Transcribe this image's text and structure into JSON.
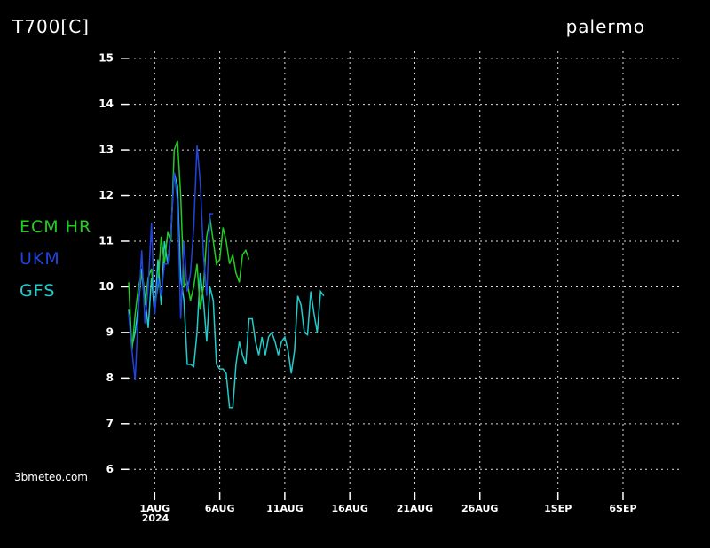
{
  "chart_data": {
    "type": "line",
    "title": "T700[C]",
    "location": "palermo",
    "source": "3bmeteo.com",
    "year_label": "2024",
    "xlim": [
      -1,
      41.3
    ],
    "ylim": [
      5.5,
      15.1
    ],
    "xticks": [
      {
        "value": 1,
        "label": "1AUG"
      },
      {
        "value": 6,
        "label": "6AUG"
      },
      {
        "value": 11,
        "label": "11AUG"
      },
      {
        "value": 16,
        "label": "16AUG"
      },
      {
        "value": 21,
        "label": "21AUG"
      },
      {
        "value": 26,
        "label": "26AUG"
      },
      {
        "value": 32,
        "label": "1SEP"
      },
      {
        "value": 37,
        "label": "6SEP"
      }
    ],
    "yticks": [
      6,
      7,
      8,
      9,
      10,
      11,
      12,
      13,
      14,
      15
    ],
    "grid": true,
    "series": [
      {
        "name": "ECM HR",
        "color": "#22cc22",
        "x": [
          -1,
          -0.75,
          -0.5,
          -0.25,
          0,
          0.25,
          0.5,
          0.75,
          1,
          1.25,
          1.5,
          1.75,
          2,
          2.25,
          2.5,
          2.75,
          3,
          3.25,
          3.5,
          3.75,
          4,
          4.25,
          4.5,
          4.75,
          5,
          5.25,
          5.5,
          5.75,
          6,
          6.25,
          6.5,
          6.75,
          7,
          7.25,
          7.5,
          7.75,
          8,
          8.25
        ],
        "values": [
          10.1,
          8.6,
          9.4,
          10.0,
          10.3,
          9.6,
          10.2,
          10.4,
          9.6,
          10.0,
          11.1,
          10.5,
          11.2,
          11.0,
          13.0,
          13.2,
          12.0,
          10.0,
          10.1,
          9.7,
          10.0,
          10.5,
          9.5,
          10.0,
          11.1,
          11.5,
          11.0,
          10.5,
          10.6,
          11.3,
          11.0,
          10.5,
          10.7,
          10.3,
          10.1,
          10.7,
          10.8,
          10.6
        ]
      },
      {
        "name": "UKM",
        "color": "#2244dd",
        "x": [
          -1,
          -0.75,
          -0.5,
          -0.25,
          0,
          0.25,
          0.5,
          0.75,
          1,
          1.25,
          1.5,
          1.75,
          2,
          2.25,
          2.5,
          2.75,
          3,
          3.25,
          3.5,
          3.75,
          4,
          4.25,
          4.5,
          4.75,
          5,
          5.25,
          5.5
        ],
        "values": [
          9.4,
          8.6,
          7.95,
          9.5,
          10.8,
          9.2,
          10.0,
          11.4,
          9.4,
          10.2,
          9.8,
          10.5,
          10.5,
          11.2,
          12.5,
          11.9,
          9.3,
          11.0,
          9.9,
          10.3,
          11.3,
          13.1,
          12.3,
          10.7,
          9.8,
          11.6,
          11.6
        ]
      },
      {
        "name": "GFS",
        "color": "#22cccc",
        "x": [
          -1,
          -0.75,
          -0.5,
          -0.25,
          0,
          0.25,
          0.5,
          0.75,
          1,
          1.25,
          1.5,
          1.75,
          2,
          2.25,
          2.5,
          2.75,
          3,
          3.25,
          3.5,
          3.75,
          4,
          4.25,
          4.5,
          4.75,
          5,
          5.25,
          5.5,
          5.75,
          6,
          6.25,
          6.5,
          6.75,
          7,
          7.25,
          7.5,
          7.75,
          8,
          8.25,
          8.5,
          8.75,
          9,
          9.25,
          9.5,
          9.75,
          10,
          10.25,
          10.5,
          10.75,
          11,
          11.25,
          11.5,
          11.75,
          12,
          12.25,
          12.5,
          12.75,
          13,
          13.25,
          13.5,
          13.75,
          14
        ],
        "values": [
          9.5,
          8.7,
          9.0,
          9.6,
          10.4,
          9.8,
          9.1,
          10.2,
          9.4,
          10.6,
          9.6,
          11.0,
          10.5,
          11.2,
          12.5,
          12.2,
          10.2,
          9.7,
          8.3,
          8.3,
          8.25,
          9.0,
          10.3,
          9.7,
          8.8,
          10.0,
          9.7,
          8.3,
          8.2,
          8.2,
          8.1,
          7.35,
          7.35,
          8.3,
          8.8,
          8.5,
          8.3,
          9.3,
          9.3,
          8.8,
          8.5,
          8.9,
          8.5,
          8.9,
          9.0,
          8.8,
          8.5,
          8.8,
          8.9,
          8.6,
          8.1,
          8.6,
          9.8,
          9.6,
          9.0,
          8.95,
          9.9,
          9.4,
          9.0,
          9.9,
          9.8
        ]
      }
    ]
  }
}
